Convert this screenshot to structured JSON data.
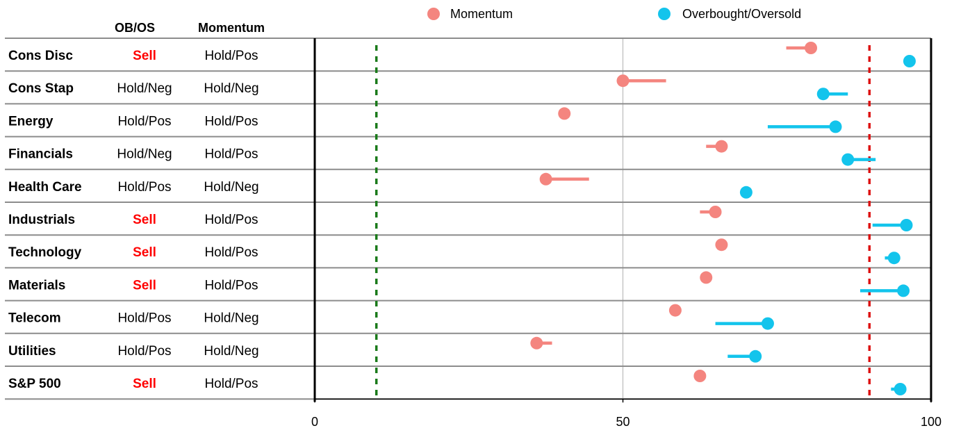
{
  "chart_data": {
    "type": "scatter",
    "title": "",
    "xlabel": "",
    "ylabel": "",
    "xlim": [
      0,
      100
    ],
    "xticks": [
      0,
      50,
      100
    ],
    "grid": true,
    "legend_position": "top",
    "colors": {
      "momentum": "#f4857f",
      "obos": "#13c4ec",
      "sell": "#ff0000",
      "oversold_line": "#1a7a1a",
      "overbought_line": "#dd1111",
      "row_divider": "#8c8c8c",
      "gridline": "#b0b0b0"
    },
    "table_headers": {
      "obos": "OB/OS",
      "momentum": "Momentum"
    },
    "reference_lines": [
      {
        "x": 10,
        "style": "dotted",
        "color_key": "oversold_line"
      },
      {
        "x": 90,
        "style": "dotted",
        "color_key": "overbought_line"
      }
    ],
    "series": [
      {
        "name": "Momentum",
        "key": "momentum",
        "marker": "circle"
      },
      {
        "name": "Overbought/Oversold",
        "key": "obos",
        "marker": "circle"
      }
    ],
    "rows": [
      {
        "label": "Cons Disc",
        "obos_signal": "Sell",
        "mom_signal": "Hold/Pos",
        "momentum": {
          "value": 80.5,
          "prior": 76.5
        },
        "obos": {
          "value": 96.5,
          "prior": 96.5
        }
      },
      {
        "label": "Cons Stap",
        "obos_signal": "Hold/Neg",
        "mom_signal": "Hold/Neg",
        "momentum": {
          "value": 50.0,
          "prior": 57.0
        },
        "obos": {
          "value": 82.5,
          "prior": 86.5
        }
      },
      {
        "label": "Energy",
        "obos_signal": "Hold/Pos",
        "mom_signal": "Hold/Pos",
        "momentum": {
          "value": 40.5,
          "prior": 40.5
        },
        "obos": {
          "value": 84.5,
          "prior": 73.5
        }
      },
      {
        "label": "Financials",
        "obos_signal": "Hold/Neg",
        "mom_signal": "Hold/Pos",
        "momentum": {
          "value": 66.0,
          "prior": 63.5
        },
        "obos": {
          "value": 86.5,
          "prior": 91.0
        }
      },
      {
        "label": "Health Care",
        "obos_signal": "Hold/Pos",
        "mom_signal": "Hold/Neg",
        "momentum": {
          "value": 37.5,
          "prior": 44.5
        },
        "obos": {
          "value": 70.0,
          "prior": 70.0
        }
      },
      {
        "label": "Industrials",
        "obos_signal": "Sell",
        "mom_signal": "Hold/Pos",
        "momentum": {
          "value": 65.0,
          "prior": 62.5
        },
        "obos": {
          "value": 96.0,
          "prior": 90.5
        }
      },
      {
        "label": "Technology",
        "obos_signal": "Sell",
        "mom_signal": "Hold/Pos",
        "momentum": {
          "value": 66.0,
          "prior": 66.0
        },
        "obos": {
          "value": 94.0,
          "prior": 92.5
        }
      },
      {
        "label": "Materials",
        "obos_signal": "Sell",
        "mom_signal": "Hold/Pos",
        "momentum": {
          "value": 63.5,
          "prior": 63.5
        },
        "obos": {
          "value": 95.5,
          "prior": 88.5
        }
      },
      {
        "label": "Telecom",
        "obos_signal": "Hold/Pos",
        "mom_signal": "Hold/Neg",
        "momentum": {
          "value": 58.5,
          "prior": 58.5
        },
        "obos": {
          "value": 73.5,
          "prior": 65.0
        }
      },
      {
        "label": "Utilities",
        "obos_signal": "Hold/Pos",
        "mom_signal": "Hold/Neg",
        "momentum": {
          "value": 36.0,
          "prior": 38.5
        },
        "obos": {
          "value": 71.5,
          "prior": 67.0
        }
      },
      {
        "label": "S&P 500",
        "obos_signal": "Sell",
        "mom_signal": "Hold/Pos",
        "momentum": {
          "value": 62.5,
          "prior": 62.5
        },
        "obos": {
          "value": 95.0,
          "prior": 93.5
        }
      }
    ]
  }
}
